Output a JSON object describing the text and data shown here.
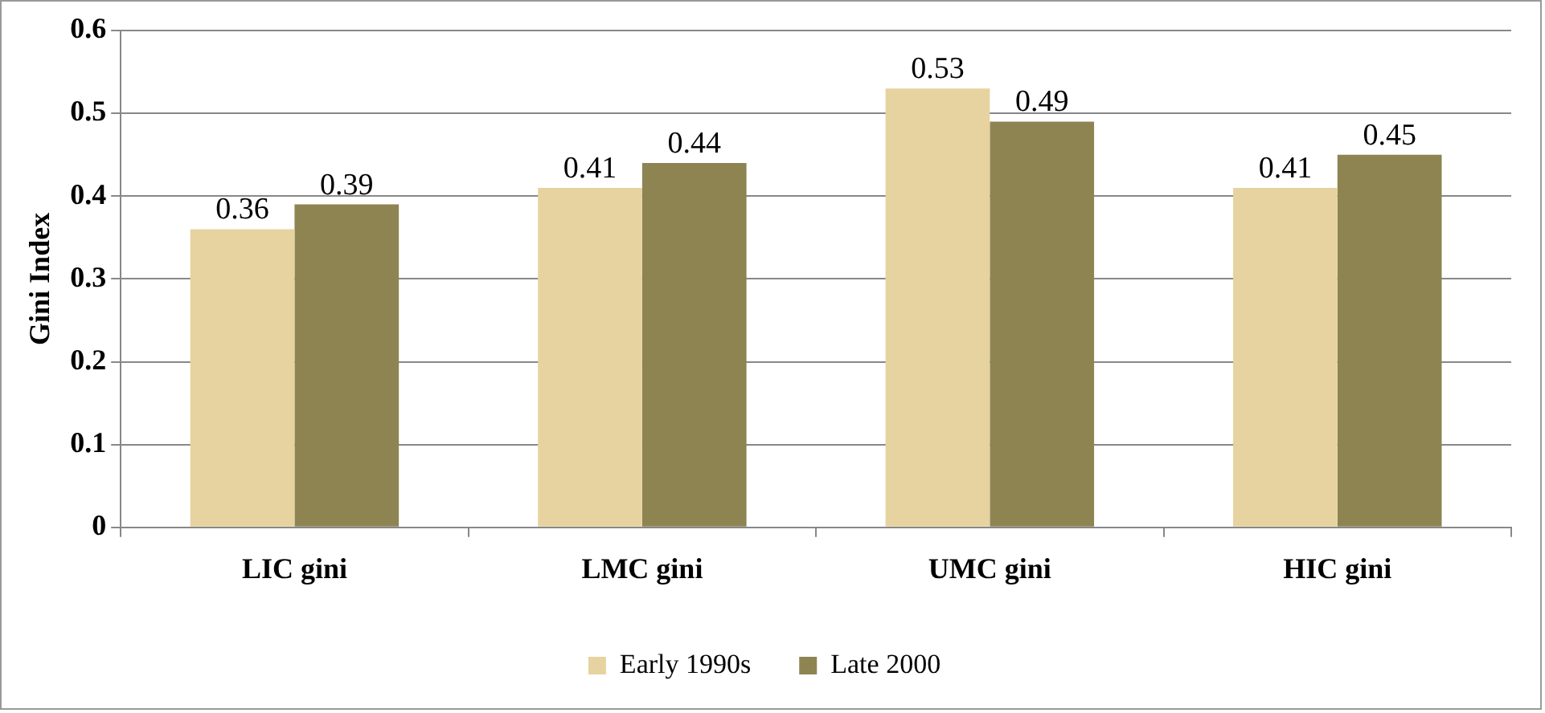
{
  "chart_data": {
    "type": "bar",
    "ylabel": "Gini Index",
    "categories": [
      "LIC gini",
      "LMC gini",
      "UMC gini",
      "HIC gini"
    ],
    "series": [
      {
        "name": "Early 1990s",
        "color": "#e6d3a0",
        "values": [
          0.36,
          0.41,
          0.53,
          0.41
        ]
      },
      {
        "name": "Late 2000",
        "color": "#8d8452",
        "values": [
          0.39,
          0.44,
          0.49,
          0.45
        ]
      }
    ],
    "ylim": [
      0,
      0.6
    ],
    "yticks": [
      0,
      0.1,
      0.2,
      0.3,
      0.4,
      0.5,
      0.6
    ],
    "grid": "y",
    "legend": "bottom",
    "data_labels": true
  }
}
